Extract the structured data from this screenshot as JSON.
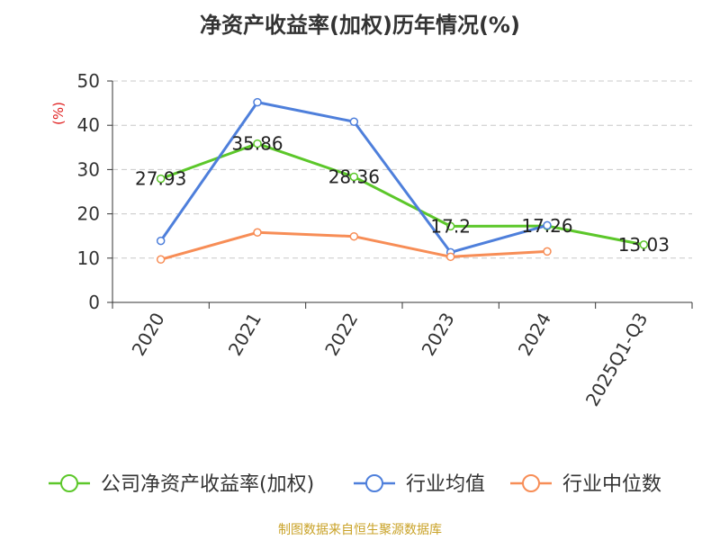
{
  "chart_data": {
    "type": "line",
    "title": "净资产收益率(加权)历年情况(%)",
    "ylabel": "(%)",
    "xlabel": "",
    "ylim": [
      0,
      50
    ],
    "yticks": [
      0,
      10,
      20,
      30,
      40,
      50
    ],
    "grid": true,
    "legend_position": "bottom",
    "categories": [
      "2020",
      "2021",
      "2022",
      "2023",
      "2024",
      "2025Q1-Q3"
    ],
    "series": [
      {
        "name": "公司净资产收益率(加权)",
        "color": "#5cc72a",
        "values": [
          27.93,
          35.86,
          28.36,
          17.2,
          17.26,
          13.03
        ],
        "labels": [
          "27.93",
          "35.86",
          "28.36",
          "17.2",
          "17.26",
          "13.03"
        ]
      },
      {
        "name": "行业均值",
        "color": "#4e7fdb",
        "values": [
          13.9,
          45.2,
          40.8,
          11.3,
          17.4,
          null
        ]
      },
      {
        "name": "行业中位数",
        "color": "#f78d56",
        "values": [
          9.7,
          15.8,
          14.9,
          10.3,
          11.5,
          null
        ]
      }
    ]
  },
  "footer": {
    "source": "制图数据来自恒生聚源数据库"
  }
}
